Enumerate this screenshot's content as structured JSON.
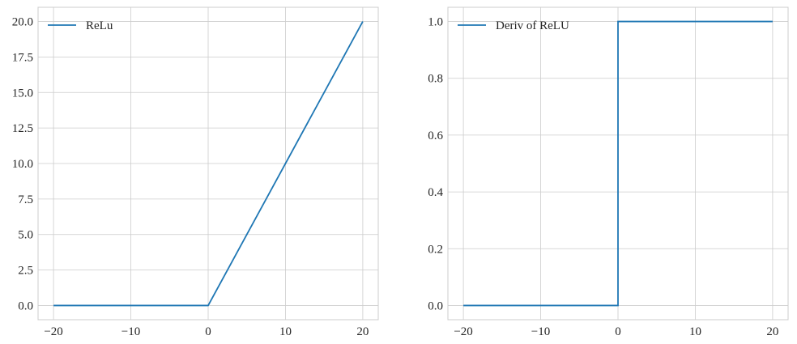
{
  "chart_data": [
    {
      "type": "line",
      "title": "",
      "xlabel": "",
      "ylabel": "",
      "xlim": [
        -22,
        22
      ],
      "ylim": [
        -1,
        21
      ],
      "xticks": [
        -20,
        -10,
        0,
        10,
        20
      ],
      "xtick_labels": [
        "−20",
        "−10",
        "0",
        "10",
        "20"
      ],
      "yticks": [
        0,
        2.5,
        5,
        7.5,
        10,
        12.5,
        15,
        17.5,
        20
      ],
      "ytick_labels": [
        "0.0",
        "2.5",
        "5.0",
        "7.5",
        "10.0",
        "12.5",
        "15.0",
        "17.5",
        "20.0"
      ],
      "grid": true,
      "legend_position": "upper-left",
      "series": [
        {
          "name": "ReLu",
          "color": "#1f77b4",
          "x": [
            -20,
            0,
            20
          ],
          "y": [
            0,
            0,
            20
          ]
        }
      ]
    },
    {
      "type": "line",
      "title": "",
      "xlabel": "",
      "ylabel": "",
      "xlim": [
        -22,
        22
      ],
      "ylim": [
        -0.05,
        1.05
      ],
      "xticks": [
        -20,
        -10,
        0,
        10,
        20
      ],
      "xtick_labels": [
        "−20",
        "−10",
        "0",
        "10",
        "20"
      ],
      "yticks": [
        0,
        0.2,
        0.4,
        0.6,
        0.8,
        1.0
      ],
      "ytick_labels": [
        "0.0",
        "0.2",
        "0.4",
        "0.6",
        "0.8",
        "1.0"
      ],
      "grid": true,
      "legend_position": "upper-left",
      "series": [
        {
          "name": "Deriv of ReLU",
          "color": "#1f77b4",
          "x": [
            -20,
            0,
            0,
            20
          ],
          "y": [
            0,
            0,
            1,
            1
          ]
        }
      ]
    }
  ]
}
